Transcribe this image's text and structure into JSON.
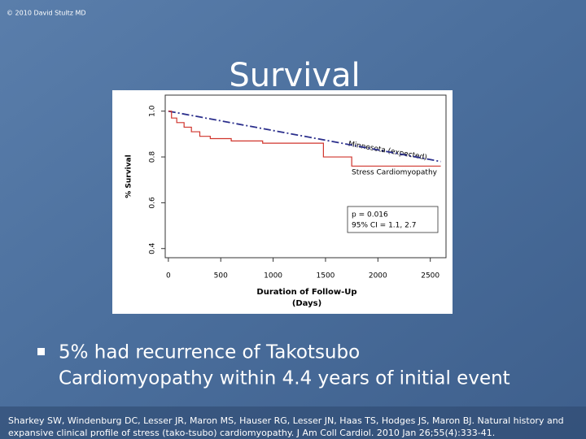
{
  "copyright": "© 2010 David Stultz MD",
  "title": "Survival",
  "bullet": [
    "5% had recurrence of Takotsubo",
    "Cardiomyopathy within 4.4 years of initial event"
  ],
  "citation": [
    "Sharkey SW, Windenburg DC, Lesser JR, Maron MS, Hauser RG, Lesser JN, Haas TS, Hodges JS, Maron BJ. Natural history and",
    "expansive clinical profile of stress (tako-tsubo) cardiomyopathy. J Am Coll Cardiol. 2010 Jan 26;55(4):333-41."
  ],
  "chart_data": {
    "type": "line",
    "ylabel": "% Survival",
    "xlabel": [
      "Duration of Follow-Up",
      "(Days)"
    ],
    "annotations": [
      "p = 0.016",
      "95% CI = 1.1, 2.7"
    ],
    "xlim": [
      -30,
      2650
    ],
    "xticks": [
      0,
      500,
      1000,
      1500,
      2000,
      2500
    ],
    "ylim": [
      0.36,
      1.07
    ],
    "yticks": [
      0.4,
      0.6,
      0.8,
      {
        "value": 1,
        "label": "1.0"
      }
    ],
    "series": [
      {
        "name": "Minnesota (expected)",
        "color": "#2b2f8c",
        "dash": true,
        "x": [
          0,
          2600
        ],
        "values": [
          1.0,
          0.78
        ]
      },
      {
        "name": "Stress Cardiomyopathy",
        "color": "#d0342c",
        "dash": false,
        "x": [
          0,
          30,
          30,
          80,
          80,
          150,
          150,
          220,
          220,
          300,
          300,
          400,
          400,
          600,
          600,
          900,
          900,
          1480,
          1480,
          1750,
          1750,
          2600
        ],
        "values": [
          1.0,
          1.0,
          0.97,
          0.97,
          0.95,
          0.95,
          0.93,
          0.93,
          0.91,
          0.91,
          0.89,
          0.89,
          0.88,
          0.88,
          0.87,
          0.87,
          0.86,
          0.86,
          0.8,
          0.8,
          0.76,
          0.76
        ]
      }
    ]
  }
}
